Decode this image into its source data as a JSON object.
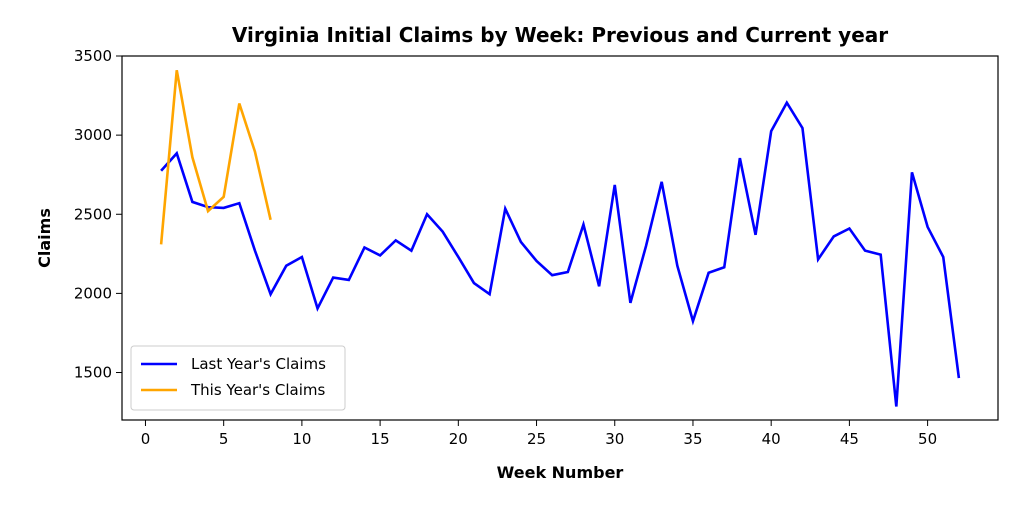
{
  "chart_data": {
    "type": "line",
    "title": "Virginia Initial Claims by Week: Previous and Current year",
    "xlabel": "Week Number",
    "ylabel": "Claims",
    "xlim": [
      -1.5,
      54.5
    ],
    "ylim": [
      1200,
      3500
    ],
    "xticks": [
      0,
      5,
      10,
      15,
      20,
      25,
      30,
      35,
      40,
      45,
      50
    ],
    "yticks": [
      1500,
      2000,
      2500,
      3000,
      3500
    ],
    "grid": false,
    "legend_position": "lower-left",
    "series": [
      {
        "name": "Last Year's Claims",
        "color": "#0000ff",
        "x": [
          1,
          2,
          3,
          4,
          5,
          6,
          7,
          8,
          9,
          10,
          11,
          12,
          13,
          14,
          15,
          16,
          17,
          18,
          19,
          20,
          21,
          22,
          23,
          24,
          25,
          26,
          27,
          28,
          29,
          30,
          31,
          32,
          33,
          34,
          35,
          36,
          37,
          38,
          39,
          40,
          41,
          42,
          43,
          44,
          45,
          46,
          47,
          48,
          49,
          50,
          51,
          52
        ],
        "values": [
          2775,
          2885,
          2578,
          2545,
          2540,
          2570,
          2270,
          1995,
          2175,
          2230,
          1905,
          2100,
          2085,
          2290,
          2240,
          2335,
          2270,
          2500,
          2390,
          2230,
          2065,
          1995,
          2535,
          2325,
          2205,
          2115,
          2135,
          2435,
          2045,
          2685,
          1940,
          2300,
          2705,
          2175,
          1825,
          2130,
          2165,
          2855,
          2370,
          3025,
          3205,
          3045,
          2215,
          2360,
          2410,
          2270,
          2245,
          1285,
          2765,
          2420,
          2230,
          1465
        ]
      },
      {
        "name": "This Year's Claims",
        "color": "#ffa500",
        "x": [
          1,
          2,
          3,
          4,
          5,
          6,
          7,
          8
        ],
        "values": [
          2310,
          3410,
          2860,
          2520,
          2610,
          3200,
          2895,
          2465
        ]
      }
    ]
  }
}
